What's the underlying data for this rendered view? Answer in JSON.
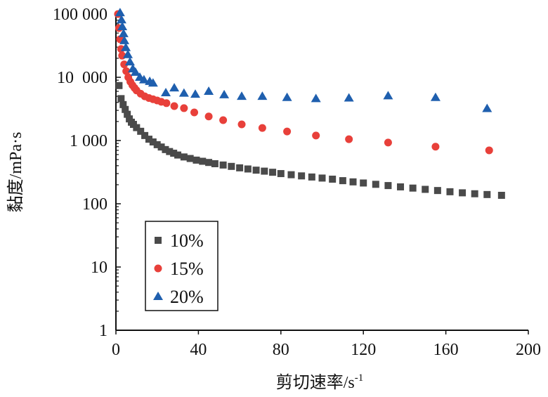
{
  "chart_data": {
    "type": "scatter",
    "title": "",
    "xlabel": "剪切速率/s",
    "xlabel_sup": "-1",
    "ylabel": "黏度/mPa·s",
    "xlim": [
      0,
      200
    ],
    "ylim": [
      1,
      100000
    ],
    "yscale": "log",
    "grid": false,
    "legend_placement": "lower-left",
    "x_ticks": [
      0,
      40,
      80,
      120,
      160,
      200
    ],
    "x_tick_labels": [
      "0",
      "40",
      "80",
      "120",
      "160",
      "200"
    ],
    "y_ticks": [
      1,
      10,
      100,
      1000,
      10000,
      100000
    ],
    "y_tick_labels": [
      "1",
      "10",
      "100",
      "1 000",
      "10  000",
      "100 000"
    ],
    "series": [
      {
        "name": "10%",
        "marker": "square",
        "color": "#4a4a4a",
        "x": [
          1.5,
          2.5,
          3.5,
          4.5,
          5.5,
          6.5,
          7.5,
          8.5,
          10,
          12,
          14,
          16,
          18,
          20,
          22,
          24,
          26,
          28,
          30,
          33,
          36,
          39,
          42,
          45,
          48,
          52,
          56,
          60,
          64,
          68,
          72,
          76,
          80,
          85,
          90,
          95,
          100,
          105,
          110,
          115,
          120,
          126,
          132,
          138,
          144,
          150,
          156,
          162,
          168,
          174,
          180,
          187
        ],
        "y": [
          7400,
          4600,
          3700,
          3100,
          2600,
          2200,
          1950,
          1800,
          1600,
          1400,
          1200,
          1050,
          950,
          860,
          790,
          720,
          670,
          630,
          590,
          550,
          520,
          490,
          470,
          450,
          430,
          410,
          390,
          370,
          355,
          340,
          328,
          315,
          300,
          288,
          276,
          265,
          255,
          245,
          232,
          222,
          213,
          203,
          194,
          185,
          177,
          169,
          162,
          155,
          149,
          144,
          140,
          136
        ]
      },
      {
        "name": "15%",
        "marker": "circle",
        "color": "#e8403a",
        "x": [
          1,
          1.5,
          2,
          2.5,
          3,
          4,
          5,
          6,
          7,
          8,
          9,
          10,
          12,
          14,
          16,
          18,
          20,
          22,
          24.5,
          28.3,
          33,
          38,
          45,
          52,
          61,
          71,
          83,
          97,
          113,
          132,
          155,
          181
        ],
        "y": [
          100000,
          60000,
          40000,
          28000,
          22000,
          16000,
          12500,
          10000,
          8500,
          7500,
          6800,
          6200,
          5500,
          5000,
          4700,
          4500,
          4300,
          4100,
          3900,
          3500,
          3250,
          2780,
          2400,
          2100,
          1800,
          1580,
          1390,
          1200,
          1050,
          930,
          800,
          700
        ]
      },
      {
        "name": "20%",
        "marker": "triangle",
        "color": "#1f5fae",
        "x": [
          2,
          2.7,
          3.1,
          3.7,
          4.1,
          4.8,
          5.8,
          6.8,
          8.2,
          9.5,
          11.6,
          13.6,
          16.4,
          18,
          24.2,
          28.3,
          33,
          38.5,
          45,
          52.5,
          61,
          71,
          83,
          97,
          113,
          132,
          155,
          180
        ],
        "y": [
          105000,
          81000,
          63000,
          49000,
          38000,
          29500,
          22800,
          17500,
          13600,
          12000,
          10000,
          9100,
          8600,
          8100,
          5700,
          6800,
          5600,
          5400,
          6000,
          5300,
          5000,
          5000,
          4800,
          4600,
          4700,
          5100,
          4800,
          3200
        ]
      }
    ]
  }
}
